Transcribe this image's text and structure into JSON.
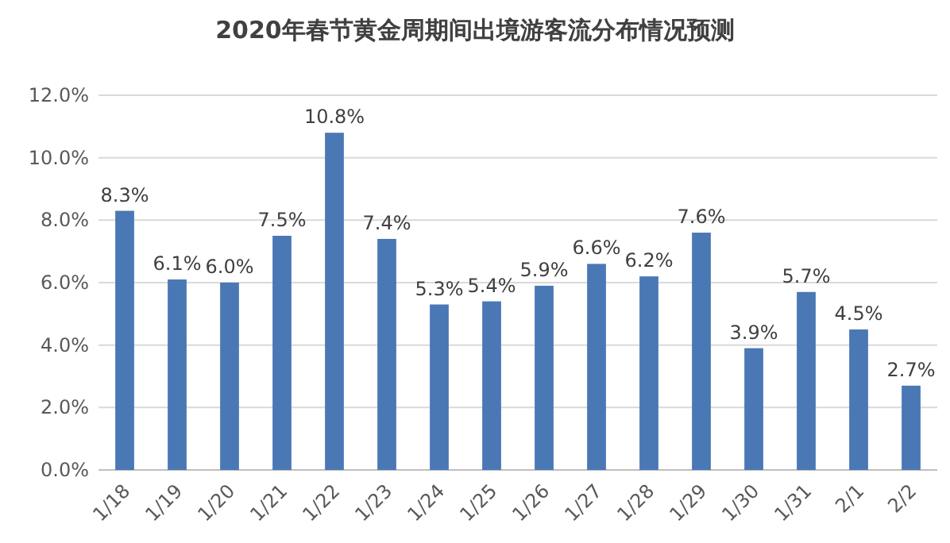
{
  "chart_data": {
    "type": "bar",
    "title": "2020年春节黄金周期间出境游客流分布情况预测",
    "categories": [
      "1/18",
      "1/19",
      "1/20",
      "1/21",
      "1/22",
      "1/23",
      "1/24",
      "1/25",
      "1/26",
      "1/27",
      "1/28",
      "1/29",
      "1/30",
      "1/31",
      "2/1",
      "2/2"
    ],
    "values": [
      8.3,
      6.1,
      6.0,
      7.5,
      10.8,
      7.4,
      5.3,
      5.4,
      5.9,
      6.6,
      6.2,
      7.6,
      3.9,
      5.7,
      4.5,
      2.7
    ],
    "value_labels": [
      "8.3%",
      "6.1%",
      "6.0%",
      "7.5%",
      "10.8%",
      "7.4%",
      "5.3%",
      "5.4%",
      "5.9%",
      "6.6%",
      "6.2%",
      "7.6%",
      "3.9%",
      "5.7%",
      "4.5%",
      "2.7%"
    ],
    "color": "#4a78b5",
    "ylim": [
      0,
      12
    ],
    "yticks": [
      {
        "value": 0,
        "label": "0.0%"
      },
      {
        "value": 2,
        "label": "2.0%"
      },
      {
        "value": 4,
        "label": "4.0%"
      },
      {
        "value": 6,
        "label": "6.0%"
      },
      {
        "value": 8,
        "label": "8.0%"
      },
      {
        "value": 10,
        "label": "10.0%"
      },
      {
        "value": 12,
        "label": "12.0%"
      }
    ],
    "grid": "y"
  }
}
